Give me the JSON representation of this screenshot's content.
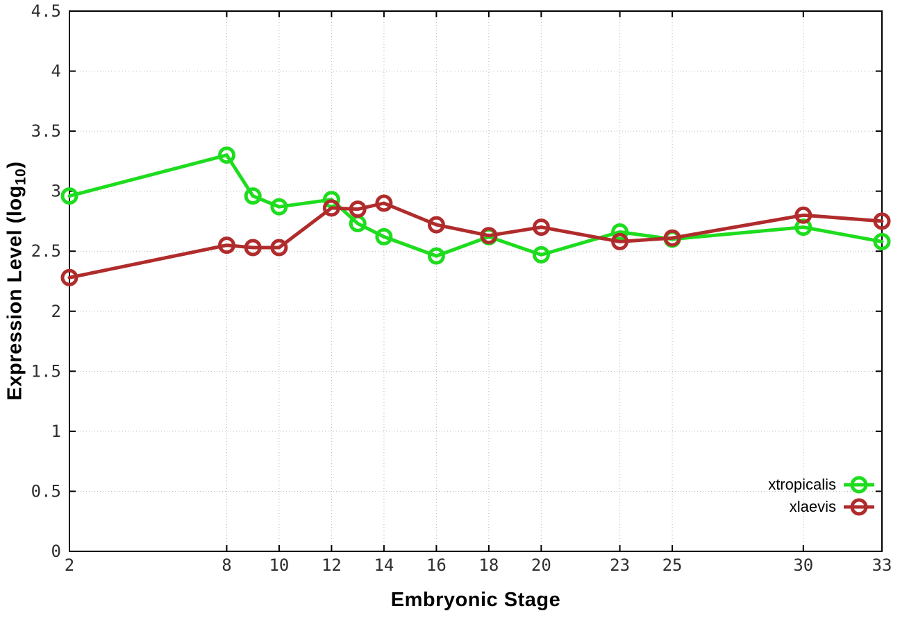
{
  "chart_data": {
    "type": "line",
    "title": "",
    "xlabel": "Embryonic Stage",
    "ylabel": "Expression Level (log10)",
    "ylabel_parts": {
      "main": "Expression Level (log",
      "sub": "10",
      "end": ")"
    },
    "x": [
      2,
      8,
      9,
      10,
      12,
      13,
      14,
      16,
      18,
      20,
      23,
      25,
      30,
      33
    ],
    "xlim": [
      2,
      33
    ],
    "ylim": [
      0,
      4.5
    ],
    "xticks": [
      2,
      8,
      10,
      12,
      14,
      16,
      18,
      20,
      23,
      25,
      30,
      33
    ],
    "xtick_labels": [
      "2",
      "8",
      "10",
      "12",
      "14",
      "16",
      "18",
      "20",
      "23",
      "25",
      "30",
      "33"
    ],
    "yticks": [
      0,
      0.5,
      1,
      1.5,
      2,
      2.5,
      3,
      3.5,
      4,
      4.5
    ],
    "ytick_labels": [
      "0",
      "0.5",
      "1",
      "1.5",
      "2",
      "2.5",
      "3",
      "3.5",
      "4",
      "4.5"
    ],
    "grid": true,
    "legend_position": "bottom-right",
    "series": [
      {
        "name": "xtropicalis",
        "color": "#1edc1e",
        "marker": "open-circle",
        "values": [
          2.96,
          3.3,
          2.96,
          2.87,
          2.93,
          2.73,
          2.62,
          2.46,
          2.62,
          2.47,
          2.66,
          2.6,
          2.7,
          2.58
        ]
      },
      {
        "name": "xlaevis",
        "color": "#b02c2c",
        "marker": "open-circle",
        "values": [
          2.28,
          2.55,
          2.53,
          2.53,
          2.86,
          2.85,
          2.9,
          2.72,
          2.63,
          2.7,
          2.58,
          2.61,
          2.8,
          2.75
        ]
      }
    ],
    "style": {
      "grid_color": "#b8b8b8",
      "axis_color": "#000000",
      "tick_label_color": "#2e2e2e"
    }
  }
}
